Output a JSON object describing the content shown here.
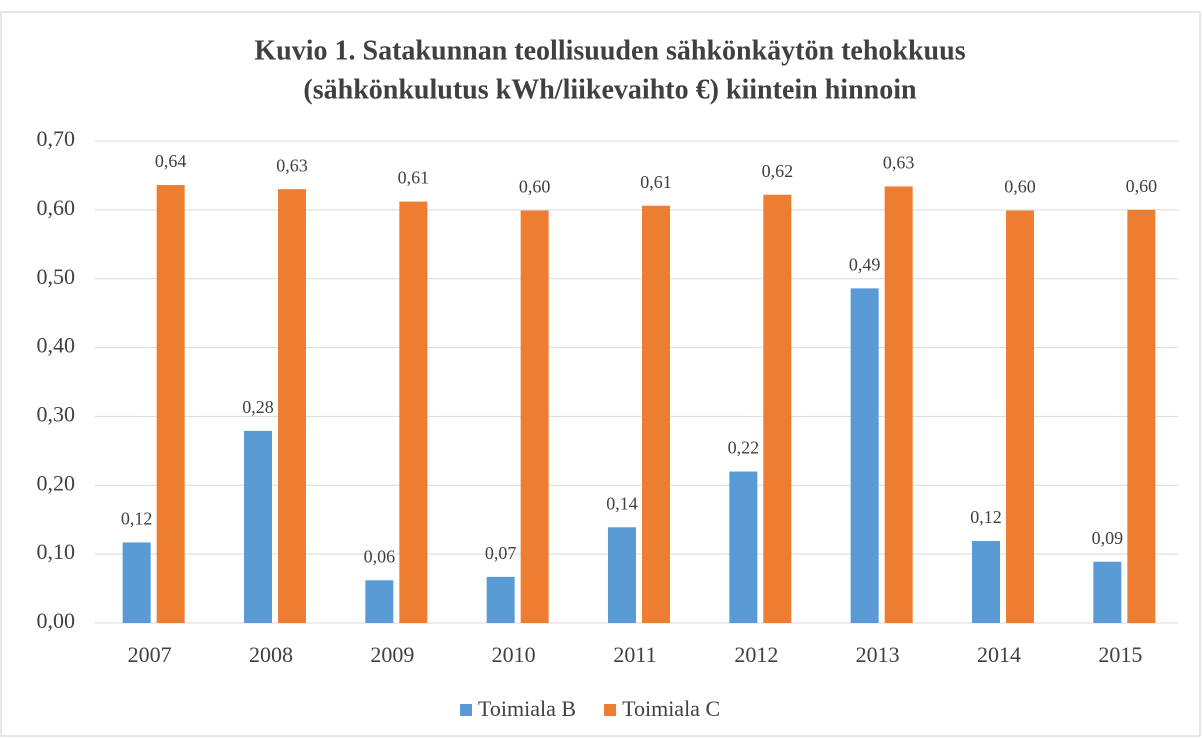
{
  "chart_data": {
    "type": "bar",
    "title": [
      "Kuvio 1. Satakunnan teollisuuden sähkönkäytön tehokkuus",
      "(sähkönkulutus kWh/liikevaihto €) kiintein hinnoin"
    ],
    "categories": [
      "2007",
      "2008",
      "2009",
      "2010",
      "2011",
      "2012",
      "2013",
      "2014",
      "2015"
    ],
    "series": [
      {
        "name": "Toimiala B",
        "color": "#5b9bd5",
        "values": [
          0.117,
          0.279,
          0.062,
          0.067,
          0.139,
          0.22,
          0.486,
          0.119,
          0.089
        ],
        "value_labels": [
          "0,12",
          "0,28",
          "0,06",
          "0,07",
          "0,14",
          "0,22",
          "0,49",
          "0,12",
          "0,09"
        ]
      },
      {
        "name": "Toimiala C",
        "color": "#ed7d31",
        "values": [
          0.636,
          0.63,
          0.612,
          0.599,
          0.606,
          0.622,
          0.634,
          0.599,
          0.6
        ],
        "value_labels": [
          "0,64",
          "0,63",
          "0,61",
          "0,60",
          "0,61",
          "0,62",
          "0,63",
          "0,60",
          "0,60"
        ]
      }
    ],
    "ylim": [
      0,
      0.7
    ],
    "yticks": [
      {
        "value": 0,
        "label": "0,00"
      },
      {
        "value": 0.1,
        "label": "0,10"
      },
      {
        "value": 0.2,
        "label": "0,20"
      },
      {
        "value": 0.3,
        "label": "0,30"
      },
      {
        "value": 0.4,
        "label": "0,40"
      },
      {
        "value": 0.5,
        "label": "0,50"
      },
      {
        "value": 0.6,
        "label": "0,60"
      },
      {
        "value": 0.7,
        "label": "0,70"
      }
    ],
    "grid": true,
    "legend": "bottom"
  }
}
